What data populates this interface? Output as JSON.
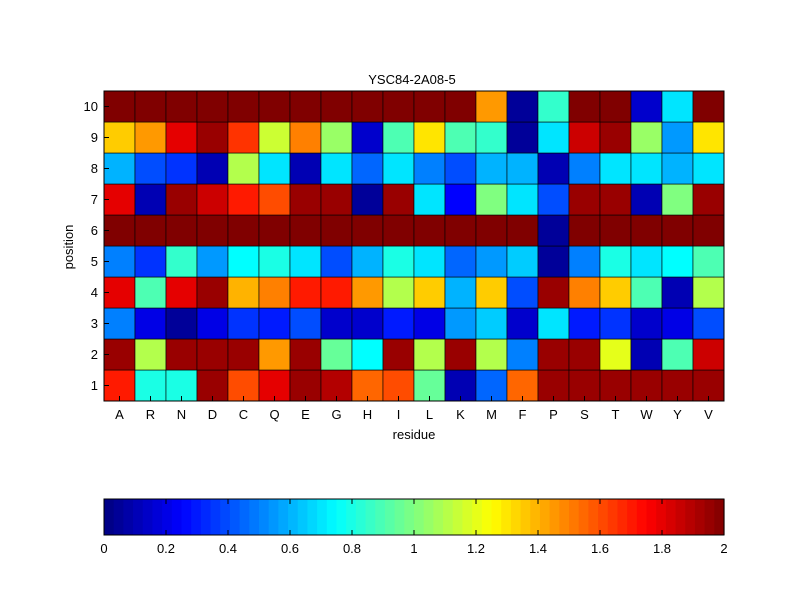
{
  "chart_data": {
    "type": "heatmap",
    "title": "YSC84-2A08-5",
    "xlabel": "residue",
    "ylabel": "position",
    "x_categories": [
      "A",
      "R",
      "N",
      "D",
      "C",
      "Q",
      "E",
      "G",
      "H",
      "I",
      "L",
      "K",
      "M",
      "F",
      "P",
      "S",
      "T",
      "W",
      "Y",
      "V"
    ],
    "y_categories": [
      "1",
      "2",
      "3",
      "4",
      "5",
      "6",
      "7",
      "8",
      "9",
      "10"
    ],
    "value_range": [
      0,
      2
    ],
    "colormap": "jet",
    "values_by_position": {
      "10": [
        2.0,
        2.0,
        2.0,
        2.0,
        2.0,
        2.0,
        2.0,
        2.0,
        2.0,
        2.0,
        2.0,
        2.0,
        1.45,
        0.05,
        0.85,
        2.0,
        2.0,
        0.15,
        0.7,
        2.0
      ],
      "9": [
        1.35,
        1.45,
        1.8,
        1.95,
        1.65,
        1.15,
        1.5,
        1.05,
        0.15,
        0.9,
        1.3,
        0.9,
        0.85,
        0.05,
        0.7,
        1.85,
        1.95,
        1.05,
        0.55,
        1.3
      ],
      "8": [
        0.6,
        0.4,
        0.35,
        0.1,
        1.1,
        0.7,
        0.1,
        0.7,
        0.45,
        0.7,
        0.5,
        0.4,
        0.6,
        0.6,
        0.1,
        0.5,
        0.7,
        0.7,
        0.6,
        0.7
      ],
      "7": [
        1.8,
        0.1,
        1.95,
        1.85,
        1.7,
        1.6,
        1.95,
        1.95,
        0.05,
        1.95,
        0.7,
        0.25,
        1.0,
        0.7,
        0.4,
        1.95,
        1.95,
        0.1,
        1.0,
        1.95
      ],
      "6": [
        2.0,
        2.0,
        2.0,
        2.0,
        2.0,
        2.0,
        2.0,
        2.0,
        2.0,
        2.0,
        2.0,
        2.0,
        2.0,
        2.0,
        0.05,
        2.0,
        2.0,
        2.0,
        2.0,
        2.0
      ],
      "5": [
        0.5,
        0.35,
        0.85,
        0.55,
        0.75,
        0.8,
        0.7,
        0.4,
        0.6,
        0.8,
        0.7,
        0.45,
        0.55,
        0.65,
        0.05,
        0.5,
        0.8,
        0.7,
        0.75,
        0.9
      ],
      "4": [
        1.8,
        0.9,
        1.8,
        1.95,
        1.4,
        1.5,
        1.7,
        1.7,
        1.45,
        1.1,
        1.35,
        0.6,
        1.35,
        0.4,
        1.95,
        1.5,
        1.35,
        0.9,
        0.1,
        1.1
      ],
      "3": [
        0.5,
        0.2,
        0.05,
        0.2,
        0.35,
        0.3,
        0.4,
        0.15,
        0.15,
        0.3,
        0.2,
        0.55,
        0.65,
        0.15,
        0.7,
        0.3,
        0.35,
        0.15,
        0.2,
        0.4
      ],
      "2": [
        1.95,
        1.1,
        1.95,
        1.95,
        1.95,
        1.45,
        1.95,
        0.95,
        0.75,
        1.95,
        1.1,
        1.95,
        1.1,
        0.5,
        1.95,
        1.95,
        1.2,
        0.1,
        0.9,
        1.85
      ],
      "1": [
        1.7,
        0.8,
        0.8,
        1.95,
        1.6,
        1.8,
        1.95,
        1.9,
        1.55,
        1.6,
        0.95,
        0.1,
        0.45,
        1.55,
        1.95,
        1.95,
        1.95,
        1.95,
        1.95,
        1.95
      ]
    },
    "colorbar": {
      "orientation": "horizontal",
      "ticks": [
        "0",
        "0.2",
        "0.4",
        "0.6",
        "0.8",
        "1",
        "1.2",
        "1.4",
        "1.6",
        "1.8",
        "2"
      ]
    }
  }
}
